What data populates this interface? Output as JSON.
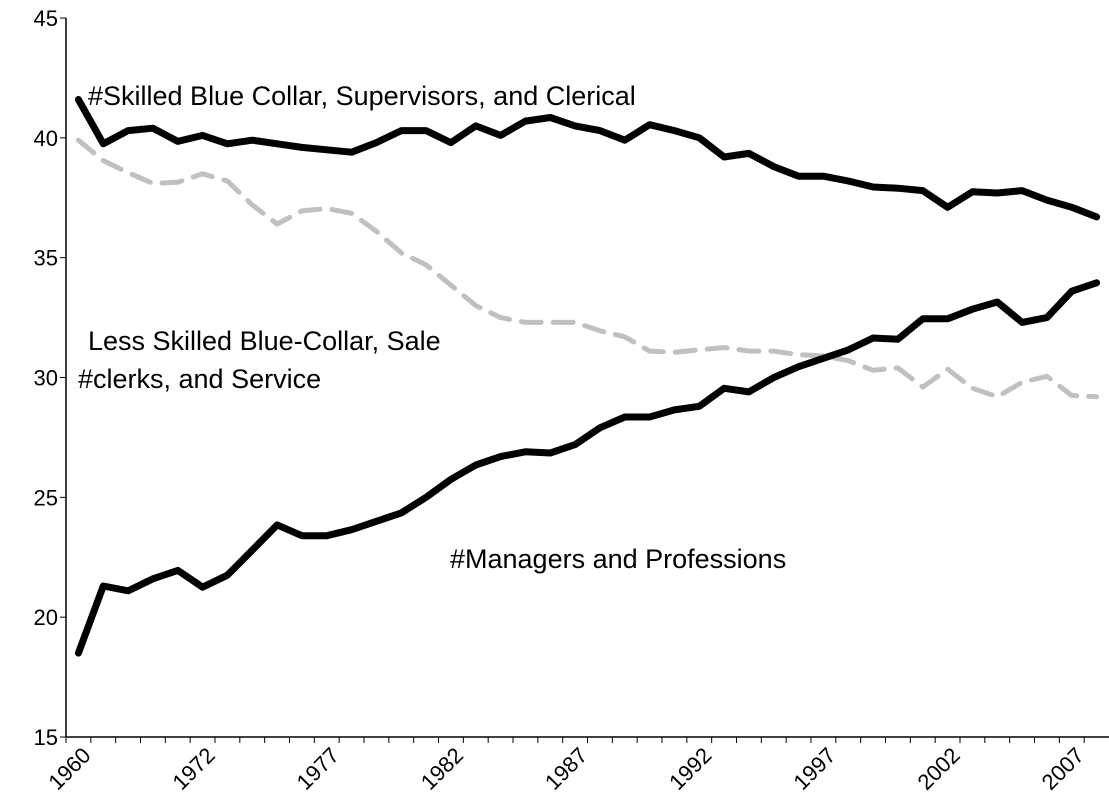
{
  "chart_data": {
    "type": "line",
    "categories": [
      "1960",
      null,
      null,
      null,
      null,
      "1972",
      null,
      null,
      null,
      null,
      "1977",
      null,
      null,
      null,
      null,
      "1982",
      null,
      null,
      null,
      null,
      "1987",
      null,
      null,
      null,
      null,
      "1992",
      null,
      null,
      null,
      null,
      "1997",
      null,
      null,
      null,
      null,
      "2002",
      null,
      null,
      null,
      null,
      "2007",
      null
    ],
    "series": [
      {
        "color": "#000000",
        "dashed": false,
        "values": [
          41.6,
          39.75,
          40.3,
          40.4,
          39.85,
          40.1,
          39.75,
          39.9,
          39.75,
          39.6,
          39.5,
          39.4,
          39.8,
          40.3,
          40.3,
          39.8,
          40.5,
          40.1,
          40.7,
          40.85,
          40.5,
          40.3,
          39.9,
          40.55,
          40.3,
          40.0,
          39.2,
          39.35,
          38.8,
          38.4,
          38.4,
          38.2,
          37.95,
          37.9,
          37.8,
          37.1,
          37.75,
          37.7,
          37.8,
          37.4,
          37.1,
          36.7
        ]
      },
      {
        "color": "#c0c0c0",
        "dashed": true,
        "values": [
          39.9,
          39.05,
          38.55,
          38.1,
          38.15,
          38.5,
          38.2,
          37.2,
          36.4,
          36.95,
          37.05,
          36.85,
          36.1,
          35.2,
          34.7,
          33.85,
          33.0,
          32.5,
          32.3,
          32.3,
          32.3,
          31.95,
          31.7,
          31.1,
          31.05,
          31.15,
          31.25,
          31.1,
          31.1,
          30.95,
          30.9,
          30.7,
          30.3,
          30.4,
          29.6,
          30.35,
          29.55,
          29.2,
          29.8,
          30.05,
          29.25,
          29.2
        ]
      },
      {
        "color": "#000000",
        "dashed": false,
        "values": [
          18.5,
          21.3,
          21.1,
          21.6,
          21.95,
          21.25,
          21.75,
          22.8,
          23.85,
          23.4,
          23.4,
          23.65,
          24.0,
          24.35,
          25.0,
          25.75,
          26.35,
          26.7,
          26.9,
          26.85,
          27.2,
          27.9,
          28.35,
          28.35,
          28.65,
          28.8,
          29.55,
          29.4,
          30.0,
          30.45,
          30.8,
          31.15,
          31.65,
          31.6,
          32.45,
          32.45,
          32.85,
          33.15,
          32.3,
          32.5,
          33.6,
          33.95
        ]
      }
    ],
    "annotations": [
      "#Skilled Blue Collar, Supervisors, and Clerical",
      "Less Skilled Blue-Collar, Sale",
      "#clerks, and Service",
      "#Managers and Professions"
    ],
    "ylim": [
      15,
      45
    ],
    "yticks": [
      15,
      20,
      25,
      30,
      35,
      40,
      45
    ],
    "grid": false
  }
}
